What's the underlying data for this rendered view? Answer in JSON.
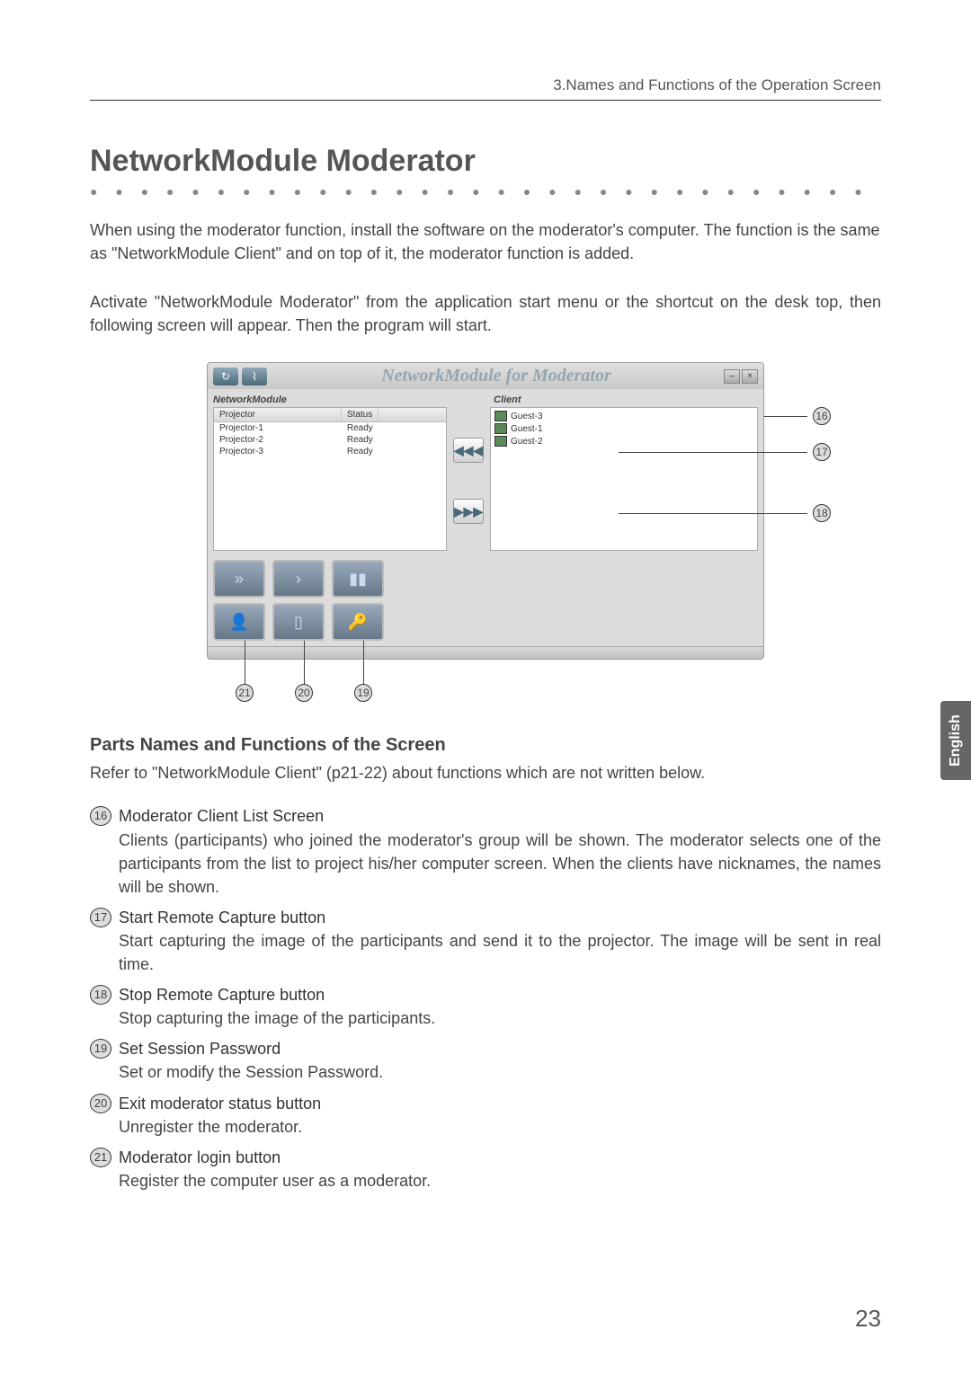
{
  "header": "3.Names and Functions of the Operation Screen",
  "title": "NetworkModule Moderator",
  "intro_p1": "When using the moderator function, install the software on the moderator's computer. The function is the same as \"NetworkModule Client\" and on top of it, the moderator function is added.",
  "intro_p2": "Activate \"NetworkModule Moderator\" from the application start menu or the shortcut on the desk top, then following screen will appear.  Then the program will start.",
  "window": {
    "title": "NetworkModule for Moderator",
    "nm_label": "NetworkModule",
    "client_label": "Client",
    "cols": {
      "projector": "Projector",
      "status": "Status"
    },
    "rows": [
      {
        "p": "Projector-1",
        "s": "Ready"
      },
      {
        "p": "Projector-2",
        "s": "Ready"
      },
      {
        "p": "Projector-3",
        "s": "Ready"
      }
    ],
    "clients": [
      "Guest-3",
      "Guest-1",
      "Guest-2"
    ]
  },
  "callouts": {
    "c16": "16",
    "c17": "17",
    "c18": "18",
    "c19": "19",
    "c20": "20",
    "c21": "21"
  },
  "section_title": "Parts Names and Functions of the Screen",
  "section_intro": "Refer to \"NetworkModule Client\" (p21-22) about functions which are not written below.",
  "items": [
    {
      "num": "16",
      "title": "Moderator Client List Screen",
      "desc": "Clients (participants) who joined the moderator's group will be shown.  The moderator selects one of the participants from the list to project his/her computer screen. When the clients have nicknames, the names will be shown."
    },
    {
      "num": "17",
      "title": "Start Remote Capture button",
      "desc": "Start capturing the image of the participants and send it to the projector. The image will be sent in real time."
    },
    {
      "num": "18",
      "title": "Stop Remote Capture button",
      "desc": "Stop capturing the image of the participants."
    },
    {
      "num": "19",
      "title": "Set Session Password",
      "desc": "Set or modify the Session Password."
    },
    {
      "num": "20",
      "title": "Exit moderator status button",
      "desc": "Unregister the moderator."
    },
    {
      "num": "21",
      "title": "Moderator login button",
      "desc": "Register the computer user as a moderator."
    }
  ],
  "side_tab": "English",
  "page_number": "23"
}
